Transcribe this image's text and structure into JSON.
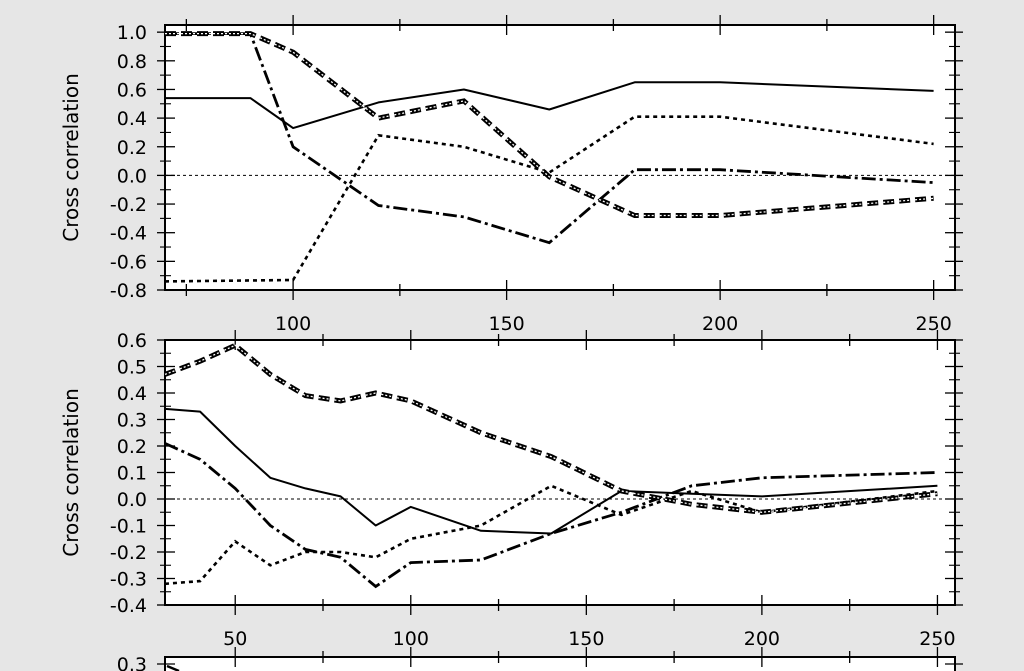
{
  "chart_data": [
    {
      "type": "line",
      "ylabel": "Cross correlation",
      "xlim": [
        70,
        255
      ],
      "ylim": [
        -0.8,
        1.05
      ],
      "x_ticks": [
        100,
        150,
        200,
        250
      ],
      "x_tick_labels": [
        "100",
        "150",
        "200",
        "250"
      ],
      "y_ticks": [
        -0.8,
        -0.6,
        -0.4,
        -0.2,
        0.0,
        0.2,
        0.4,
        0.6,
        0.8,
        1.0
      ],
      "y_tick_labels": [
        "-0.8",
        "-0.6",
        "-0.4",
        "-0.2",
        "0.0",
        "0.2",
        "0.4",
        "0.6",
        "0.8",
        "1.0"
      ],
      "zero_line": true,
      "grid": false,
      "series": [
        {
          "style": "solid",
          "x": [
            70,
            90,
            100,
            120,
            140,
            160,
            180,
            200,
            250
          ],
          "values": [
            0.54,
            0.54,
            0.33,
            0.51,
            0.6,
            0.46,
            0.65,
            0.65,
            0.59
          ]
        },
        {
          "style": "dotted",
          "x": [
            70,
            100,
            120,
            140,
            160,
            180,
            200,
            250
          ],
          "values": [
            -0.74,
            -0.73,
            0.28,
            0.2,
            0.02,
            0.41,
            0.41,
            0.22
          ]
        },
        {
          "style": "dash-dot",
          "x": [
            70,
            90,
            100,
            120,
            140,
            160,
            180,
            200,
            250
          ],
          "values": [
            0.99,
            0.99,
            0.2,
            -0.21,
            -0.29,
            -0.47,
            0.04,
            0.04,
            -0.05
          ]
        },
        {
          "style": "dashed-double",
          "x": [
            70,
            90,
            100,
            120,
            140,
            160,
            180,
            200,
            250
          ],
          "values": [
            0.99,
            0.99,
            0.86,
            0.4,
            0.52,
            -0.01,
            -0.28,
            -0.28,
            -0.16
          ]
        }
      ]
    },
    {
      "type": "line",
      "ylabel": "Cross correlation",
      "xlim": [
        30,
        255
      ],
      "ylim": [
        -0.4,
        0.6
      ],
      "x_ticks": [
        50,
        100,
        150,
        200,
        250
      ],
      "x_tick_labels": [
        "50",
        "100",
        "150",
        "200",
        "250"
      ],
      "y_ticks": [
        -0.4,
        -0.3,
        -0.2,
        -0.1,
        0.0,
        0.1,
        0.2,
        0.3,
        0.4,
        0.5,
        0.6
      ],
      "y_tick_labels": [
        "-0.4",
        "-0.3",
        "-0.2",
        "-0.1",
        "0.0",
        "0.1",
        "0.2",
        "0.3",
        "0.4",
        "0.5",
        "0.6"
      ],
      "zero_line": true,
      "grid": false,
      "series": [
        {
          "style": "solid",
          "x": [
            30,
            40,
            50,
            60,
            70,
            80,
            90,
            100,
            120,
            140,
            160,
            180,
            200,
            250
          ],
          "values": [
            0.34,
            0.33,
            0.2,
            0.08,
            0.04,
            0.01,
            -0.1,
            -0.03,
            -0.12,
            -0.13,
            0.03,
            0.02,
            0.01,
            0.05
          ]
        },
        {
          "style": "dotted",
          "x": [
            30,
            40,
            50,
            60,
            70,
            80,
            90,
            100,
            120,
            140,
            160,
            180,
            200,
            250
          ],
          "values": [
            -0.32,
            -0.31,
            -0.16,
            -0.25,
            -0.2,
            -0.2,
            -0.22,
            -0.15,
            -0.1,
            0.05,
            -0.06,
            0.03,
            -0.05,
            0.03
          ]
        },
        {
          "style": "dash-dot",
          "x": [
            30,
            40,
            50,
            60,
            70,
            80,
            90,
            100,
            120,
            140,
            160,
            180,
            200,
            250
          ],
          "values": [
            0.21,
            0.15,
            0.04,
            -0.1,
            -0.19,
            -0.22,
            -0.33,
            -0.24,
            -0.23,
            -0.13,
            -0.05,
            0.05,
            0.08,
            0.1
          ]
        },
        {
          "style": "dashed-double",
          "x": [
            30,
            40,
            50,
            60,
            70,
            80,
            90,
            100,
            120,
            140,
            160,
            180,
            200,
            250
          ],
          "values": [
            0.47,
            0.52,
            0.58,
            0.47,
            0.39,
            0.37,
            0.4,
            0.37,
            0.25,
            0.16,
            0.03,
            -0.02,
            -0.05,
            0.02
          ]
        }
      ]
    }
  ],
  "partial_panel": {
    "first_tick_label": "0.3"
  }
}
